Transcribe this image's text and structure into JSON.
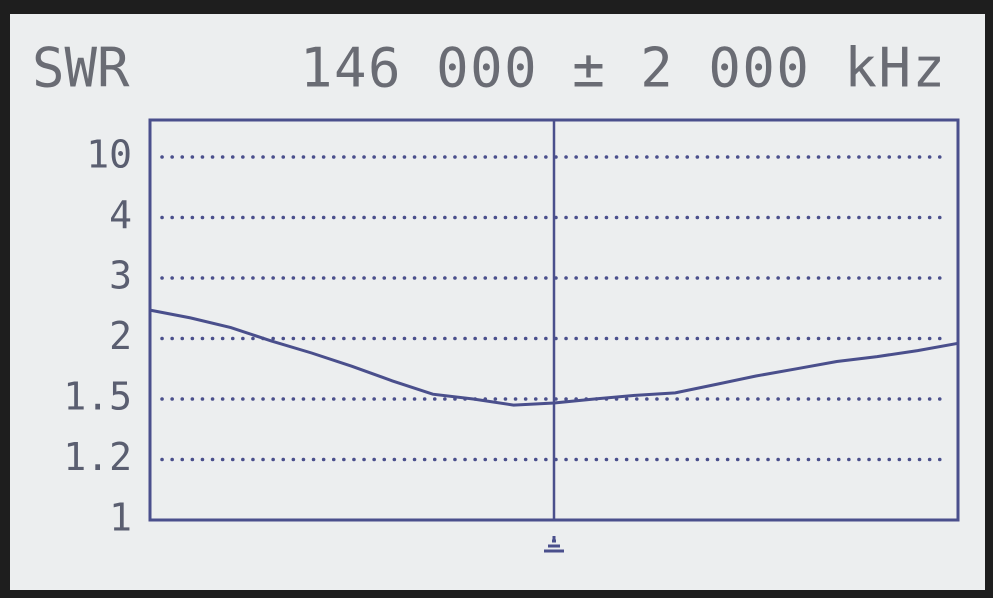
{
  "chart_data": {
    "type": "line",
    "title": "SWR",
    "subtitle": "146 000 ± 2 000 kHz",
    "x": [
      144000,
      144200,
      144400,
      144600,
      144800,
      145000,
      145200,
      145400,
      145600,
      145800,
      146000,
      146200,
      146400,
      146600,
      146800,
      147000,
      147200,
      147400,
      147600,
      147800,
      148000
    ],
    "series": [
      {
        "name": "SWR",
        "color": "#4a4f8c",
        "values": [
          2.47,
          2.34,
          2.18,
          1.98,
          1.88,
          1.77,
          1.65,
          1.54,
          1.5,
          1.47,
          1.48,
          1.5,
          1.53,
          1.55,
          1.62,
          1.69,
          1.75,
          1.81,
          1.85,
          1.9,
          1.96
        ]
      }
    ],
    "xlim": [
      144000,
      148000
    ],
    "ylim": [
      1,
      10
    ],
    "yticks": [
      1,
      1.2,
      1.5,
      2,
      3,
      4,
      10
    ],
    "grid": true,
    "grid_color": "#4a4f8c"
  }
}
